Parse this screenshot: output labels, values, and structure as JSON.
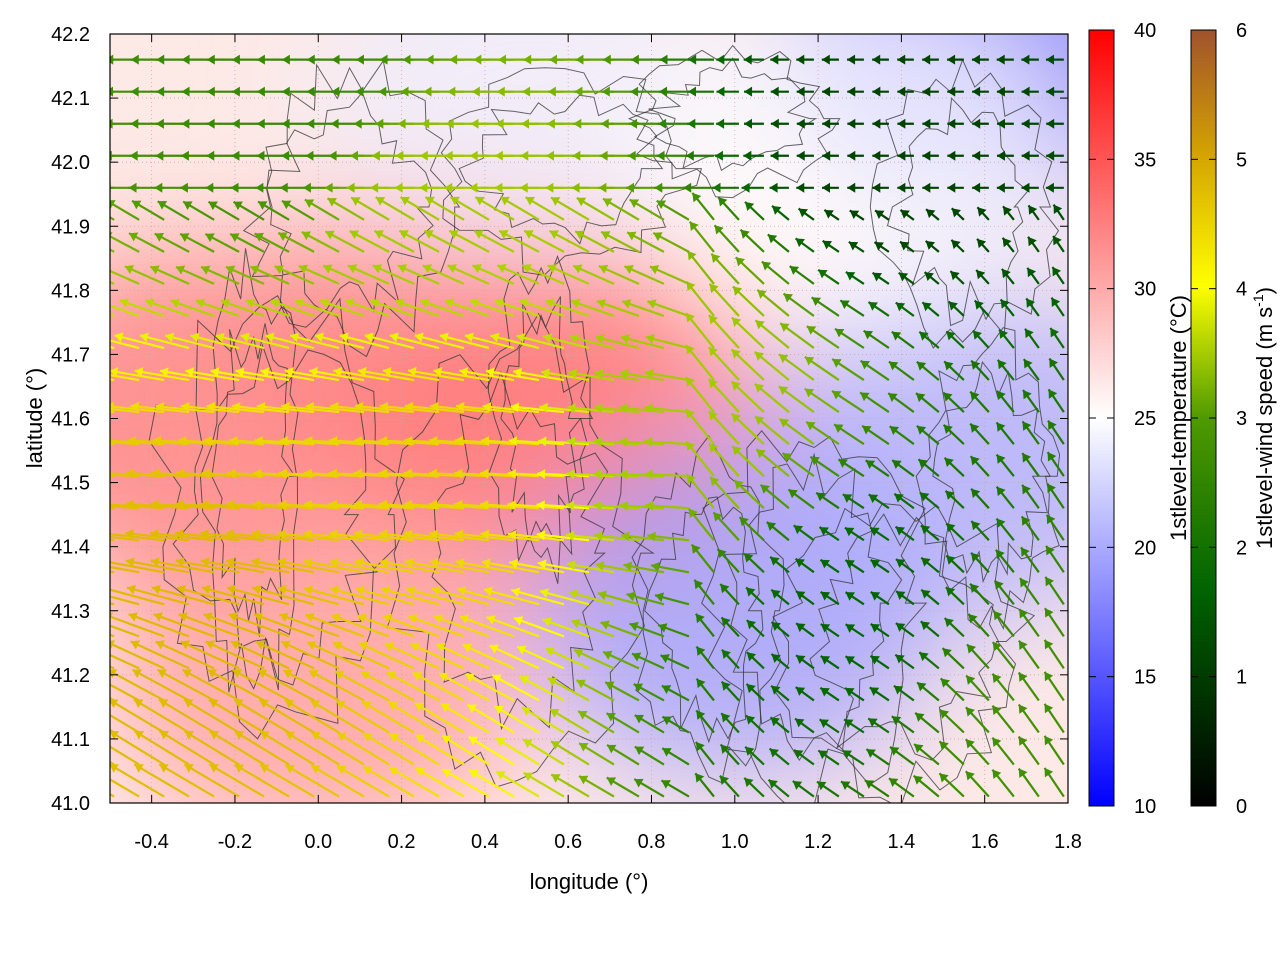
{
  "chart_data": {
    "type": "heatmap",
    "title": "",
    "xlabel": "longitude (°)",
    "ylabel": "latitude (°)",
    "xlim": [
      -0.5,
      1.8
    ],
    "ylim": [
      41.0,
      42.2
    ],
    "x_ticks": [
      "-0.4",
      "-0.2",
      "0.0",
      "0.2",
      "0.4",
      "0.6",
      "0.8",
      "1.0",
      "1.2",
      "1.4",
      "1.6",
      "1.8"
    ],
    "x_tick_values": [
      -0.4,
      -0.2,
      0.0,
      0.2,
      0.4,
      0.6,
      0.8,
      1.0,
      1.2,
      1.4,
      1.6,
      1.8
    ],
    "y_ticks": [
      "41.0",
      "41.1",
      "41.2",
      "41.3",
      "41.4",
      "41.5",
      "41.6",
      "41.7",
      "41.8",
      "41.9",
      "42.0",
      "42.1",
      "42.2"
    ],
    "y_tick_values": [
      41.0,
      41.1,
      41.2,
      41.3,
      41.4,
      41.5,
      41.6,
      41.7,
      41.8,
      41.9,
      42.0,
      42.1,
      42.2
    ],
    "grid": true,
    "colorbars": [
      {
        "label_main": "1stlevel-temperature (°C)",
        "range": [
          10,
          40
        ],
        "ticks": [
          "10",
          "15",
          "20",
          "25",
          "30",
          "35",
          "40"
        ],
        "tick_values": [
          10,
          15,
          20,
          25,
          30,
          35,
          40
        ],
        "colors": [
          "#0000ff",
          "#ffffff",
          "#ff0000"
        ]
      },
      {
        "label_main": "1stlevel-wind speed (m s",
        "label_sup": "-1",
        "label_end": ")",
        "range": [
          0,
          6
        ],
        "ticks": [
          "0",
          "1",
          "2",
          "3",
          "4",
          "5",
          "6"
        ],
        "tick_values": [
          0,
          1,
          2,
          3,
          4,
          5,
          6
        ],
        "colors": [
          "#000000",
          "#006400",
          "#4f9a00",
          "#ffff00",
          "#d4a300",
          "#a0522d"
        ]
      }
    ],
    "temperature_regions": [
      {
        "lon": -0.3,
        "lat": 41.6,
        "value": 33
      },
      {
        "lon": 0.3,
        "lat": 41.7,
        "value": 32
      },
      {
        "lon": 0.6,
        "lat": 41.6,
        "value": 33
      },
      {
        "lon": 0.0,
        "lat": 41.2,
        "value": 31
      },
      {
        "lon": 0.5,
        "lat": 42.1,
        "value": 24
      },
      {
        "lon": 1.0,
        "lat": 41.3,
        "value": 19
      },
      {
        "lon": 1.55,
        "lat": 41.55,
        "value": 20
      },
      {
        "lon": 1.6,
        "lat": 42.18,
        "value": 17
      },
      {
        "lon": 1.3,
        "lat": 42.0,
        "value": 25
      }
    ],
    "wind_speed_regions": [
      {
        "lon": -0.2,
        "lat": 41.3,
        "value": 4.5
      },
      {
        "lon": 0.3,
        "lat": 41.5,
        "value": 4.2
      },
      {
        "lon": 0.0,
        "lat": 42.1,
        "value": 2.0
      },
      {
        "lon": 0.3,
        "lat": 41.9,
        "value": 3.0
      },
      {
        "lon": 1.0,
        "lat": 41.6,
        "value": 3.0
      },
      {
        "lon": 1.3,
        "lat": 41.3,
        "value": 1.2
      },
      {
        "lon": 1.4,
        "lat": 42.0,
        "value": 0.8
      },
      {
        "lon": 1.75,
        "lat": 41.1,
        "value": 2.2
      }
    ]
  }
}
